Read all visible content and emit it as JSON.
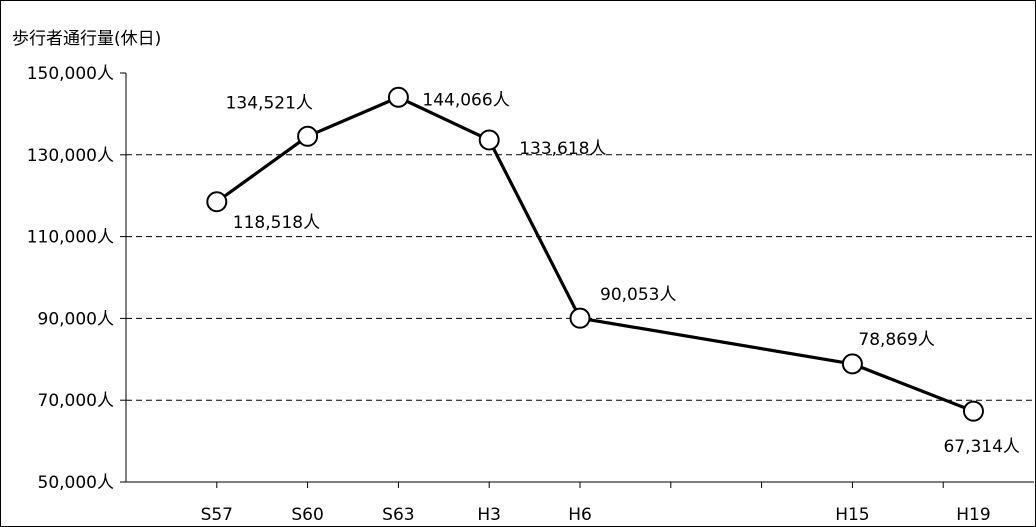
{
  "chart_data": {
    "type": "line",
    "title": "歩行者通行量(休日)",
    "x_labels": [
      "S57",
      "S60",
      "S63",
      "H3",
      "H6",
      "H15",
      "H19"
    ],
    "x_years": [
      1982,
      1985,
      1988,
      1991,
      1994,
      2003,
      2007
    ],
    "values": [
      118518,
      134521,
      144066,
      133618,
      90053,
      78869,
      67314
    ],
    "data_labels": [
      "118,518人",
      "134,521人",
      "144,066人",
      "133,618人",
      "90,053人",
      "78,869人",
      "67,314人"
    ],
    "y_ticks": [
      50000,
      70000,
      90000,
      110000,
      130000,
      150000
    ],
    "y_tick_labels": [
      "50,000人",
      "70,000人",
      "90,000人",
      "110,000人",
      "130,000人",
      "150,000人"
    ],
    "ylim": [
      50000,
      150000
    ],
    "xlim": [
      1979,
      2009
    ],
    "grid": "horizontal-dashed",
    "legend": "none",
    "line_color": "#000000",
    "marker_fill": "#ffffff"
  }
}
